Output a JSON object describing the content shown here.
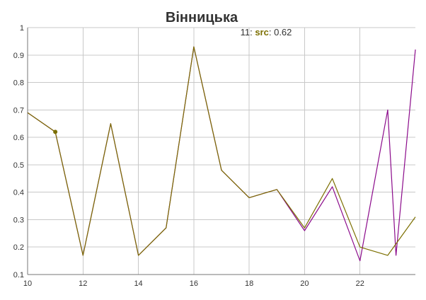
{
  "chart_data": {
    "type": "line",
    "title": "Вінницька",
    "xlabel": "",
    "ylabel": "",
    "xlim": [
      10,
      24
    ],
    "ylim": [
      0.1,
      1
    ],
    "x_ticks": [
      10,
      12,
      14,
      16,
      18,
      20,
      22
    ],
    "y_ticks": [
      0.1,
      0.2,
      0.3,
      0.4,
      0.5,
      0.6,
      0.7,
      0.8,
      0.9,
      1
    ],
    "grid": true,
    "legend": "none",
    "series": [
      {
        "key": "purple",
        "color": "#8b0a8b",
        "x": [
          10,
          11,
          12,
          13,
          14,
          15,
          16,
          17,
          18,
          19,
          20,
          21,
          22,
          23,
          23.3,
          24
        ],
        "values": [
          0.69,
          0.62,
          0.17,
          0.65,
          0.17,
          0.27,
          0.93,
          0.48,
          0.38,
          0.41,
          0.26,
          0.42,
          0.15,
          0.7,
          0.17,
          0.92
        ]
      },
      {
        "key": "olive",
        "name": "src",
        "color": "#7c6f00",
        "x": [
          10,
          11,
          12,
          13,
          14,
          15,
          16,
          17,
          18,
          19,
          20,
          21,
          22,
          23,
          24
        ],
        "values": [
          0.69,
          0.62,
          0.17,
          0.65,
          0.17,
          0.27,
          0.93,
          0.48,
          0.38,
          0.41,
          0.27,
          0.45,
          0.2,
          0.17,
          0.31
        ]
      }
    ],
    "hover": {
      "x": 11,
      "x_text": "11:",
      "series_name": "src",
      "value": 0.62,
      "value_text": "0.62"
    }
  }
}
